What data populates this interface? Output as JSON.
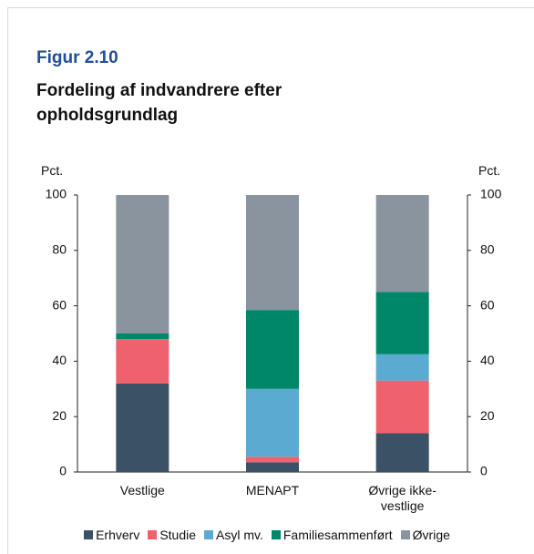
{
  "chart_data": {
    "type": "stacked_bar",
    "figure_label": "Figur 2.10",
    "title": "Fordeling af indvandrere efter opholdsgrundlag",
    "y_label": "Pct.",
    "y2_label": "Pct.",
    "categories": [
      "Vestlige",
      "MENAPT",
      "Øvrige ikke-\nvestlige"
    ],
    "series": [
      {
        "name": "Erhverv",
        "color": "#3b5266",
        "values": [
          32,
          3.5,
          14
        ]
      },
      {
        "name": "Studie",
        "color": "#f0616e",
        "values": [
          16,
          2,
          19
        ]
      },
      {
        "name": "Asyl mv.",
        "color": "#5aaad2",
        "values": [
          0,
          24.5,
          9.5
        ]
      },
      {
        "name": "Familiesammenført",
        "color": "#00876a",
        "values": [
          2,
          28.5,
          22.5
        ]
      },
      {
        "name": "Øvrige",
        "color": "#8a949e",
        "values": [
          50,
          41.5,
          35
        ]
      }
    ],
    "ylim": [
      0,
      100
    ],
    "yticks": [
      0,
      20,
      40,
      60,
      80,
      100
    ],
    "y2lim": [
      0,
      100
    ],
    "y2ticks": [
      0,
      20,
      40,
      60,
      80,
      100
    ]
  }
}
